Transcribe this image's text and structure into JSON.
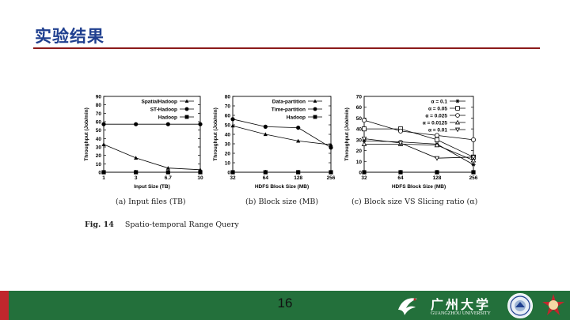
{
  "slide": {
    "title": "实验结果",
    "page_number": "16",
    "fig_label": "Fig. 14",
    "fig_title": "Spatio-temporal Range Query",
    "university_cn": "广州大学",
    "university_en": "GUANGZHOU UNIVERSITY"
  },
  "colors": {
    "title": "#1f3f8f",
    "title_rule": "#8b1a1a",
    "footer": "#23703b",
    "footer_accent": "#c1272d"
  },
  "icons": [
    "bird-logo-icon",
    "university-seal-icon",
    "star-emblem-icon"
  ],
  "chart_data": [
    {
      "type": "line",
      "caption": "(a) Input files (TB)",
      "xlabel": "Input Size (TB)",
      "ylabel": "Throughput (Job/min)",
      "categories": [
        "1",
        "3",
        "6.7",
        "10"
      ],
      "ylim": [
        0,
        90
      ],
      "yticks": [
        0,
        10,
        20,
        30,
        40,
        50,
        60,
        70,
        80,
        90
      ],
      "legend_position": "top-right",
      "series": [
        {
          "name": "SpatialHadoop",
          "marker": "triangle",
          "values": [
            33,
            17,
            5,
            3
          ]
        },
        {
          "name": "ST-Hadoop",
          "marker": "circle",
          "values": [
            57,
            57,
            57,
            57
          ]
        },
        {
          "name": "Hadoop",
          "marker": "square",
          "values": [
            0,
            0,
            0,
            0
          ]
        }
      ]
    },
    {
      "type": "line",
      "caption": "(b) Block size (MB)",
      "xlabel": "HDFS Block Size (MB)",
      "ylabel": "Throughput (Job/min)",
      "categories": [
        "32",
        "64",
        "128",
        "256"
      ],
      "ylim": [
        0,
        80
      ],
      "yticks": [
        0,
        10,
        20,
        30,
        40,
        50,
        60,
        70,
        80
      ],
      "legend_position": "top-right",
      "series": [
        {
          "name": "Data-partition",
          "marker": "triangle",
          "values": [
            49,
            40,
            33,
            29
          ]
        },
        {
          "name": "Time-partition",
          "marker": "circle",
          "values": [
            56,
            48,
            47,
            26
          ]
        },
        {
          "name": "Hadoop",
          "marker": "square",
          "values": [
            0,
            0,
            0,
            0
          ]
        }
      ]
    },
    {
      "type": "line",
      "caption": "(c) Block size VS Slicing ratio (α)",
      "xlabel": "HDFS Block Size (MB)",
      "ylabel": "Throughput (Job/min)",
      "categories": [
        "32",
        "64",
        "128",
        "256"
      ],
      "ylim": [
        0,
        70
      ],
      "yticks": [
        0,
        10,
        20,
        30,
        40,
        50,
        60,
        70
      ],
      "legend_position": "top-right",
      "series": [
        {
          "name": "α = 0.1",
          "marker": "asterisk",
          "values": [
            29,
            28,
            26,
            7
          ]
        },
        {
          "name": "α = 0.05",
          "marker": "square-open",
          "values": [
            40,
            40,
            30,
            14
          ]
        },
        {
          "name": "α = 0.025",
          "marker": "circle-open",
          "values": [
            48,
            38,
            34,
            30
          ]
        },
        {
          "name": "α = 0.0125",
          "marker": "triangle-open",
          "values": [
            26,
            26,
            25,
            11
          ]
        },
        {
          "name": "α = 0.01",
          "marker": "triangle-down-open",
          "values": [
            31,
            27,
            13,
            14
          ]
        },
        {
          "name": "",
          "marker": "square",
          "values": [
            0,
            0,
            0,
            0
          ]
        }
      ]
    }
  ]
}
